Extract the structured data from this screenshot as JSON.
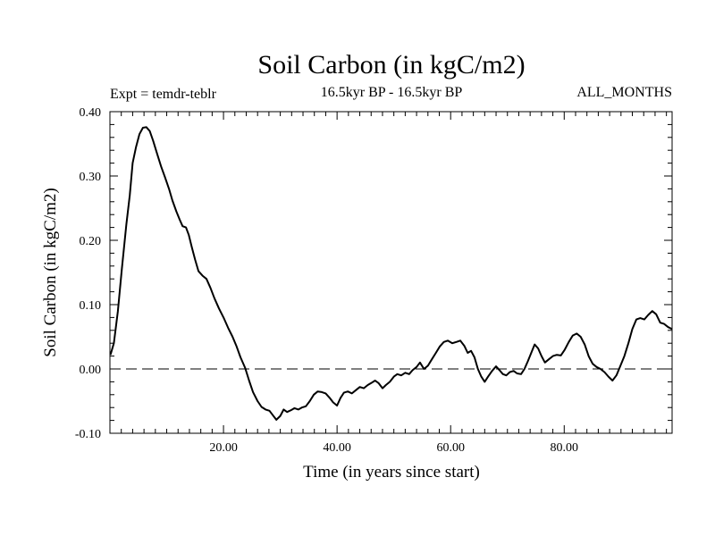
{
  "chart_data": {
    "type": "line",
    "title": "Soil Carbon (in kgC/m2)",
    "subtitle": "16.5kyr BP - 16.5kyr BP",
    "left_label": "Expt = temdr-teblr",
    "right_label": "ALL_MONTHS",
    "xlabel": "Time (in years since start)",
    "ylabel": "Soil Carbon (in kgC/m2)",
    "xlim": [
      0,
      99
    ],
    "ylim": [
      -0.1,
      0.4
    ],
    "x_ticks": [
      20,
      40,
      60,
      80
    ],
    "x_tick_labels": [
      "20.00",
      "40.00",
      "60.00",
      "80.00"
    ],
    "y_ticks": [
      -0.1,
      0,
      0.1,
      0.2,
      0.3,
      0.4
    ],
    "y_tick_labels": [
      "-0.10",
      "0.00",
      "0.10",
      "0.20",
      "0.30",
      "0.40"
    ],
    "zero_line": true,
    "series": [
      {
        "name": "Soil Carbon",
        "color": "#000000",
        "points": [
          [
            0.1,
            0.022
          ],
          [
            0.7,
            0.04
          ],
          [
            1.4,
            0.09
          ],
          [
            2.1,
            0.155
          ],
          [
            2.9,
            0.225
          ],
          [
            3.5,
            0.27
          ],
          [
            4.0,
            0.32
          ],
          [
            4.6,
            0.345
          ],
          [
            5.2,
            0.365
          ],
          [
            5.8,
            0.375
          ],
          [
            6.4,
            0.376
          ],
          [
            7.0,
            0.37
          ],
          [
            7.6,
            0.355
          ],
          [
            8.3,
            0.335
          ],
          [
            9.0,
            0.315
          ],
          [
            9.7,
            0.298
          ],
          [
            10.4,
            0.28
          ],
          [
            11.0,
            0.262
          ],
          [
            11.7,
            0.245
          ],
          [
            12.3,
            0.232
          ],
          [
            12.8,
            0.222
          ],
          [
            13.4,
            0.22
          ],
          [
            13.9,
            0.208
          ],
          [
            14.4,
            0.19
          ],
          [
            15.0,
            0.17
          ],
          [
            15.6,
            0.152
          ],
          [
            16.3,
            0.145
          ],
          [
            17.0,
            0.14
          ],
          [
            17.7,
            0.126
          ],
          [
            18.4,
            0.11
          ],
          [
            19.2,
            0.094
          ],
          [
            20.0,
            0.08
          ],
          [
            20.8,
            0.064
          ],
          [
            21.6,
            0.05
          ],
          [
            22.3,
            0.035
          ],
          [
            23.0,
            0.018
          ],
          [
            23.8,
            0.002
          ],
          [
            24.5,
            -0.018
          ],
          [
            25.2,
            -0.036
          ],
          [
            26.0,
            -0.05
          ],
          [
            26.7,
            -0.059
          ],
          [
            27.4,
            -0.063
          ],
          [
            28.1,
            -0.065
          ],
          [
            28.7,
            -0.072
          ],
          [
            29.3,
            -0.079
          ],
          [
            30.0,
            -0.073
          ],
          [
            30.6,
            -0.063
          ],
          [
            31.2,
            -0.067
          ],
          [
            31.9,
            -0.064
          ],
          [
            32.5,
            -0.061
          ],
          [
            33.2,
            -0.063
          ],
          [
            33.8,
            -0.06
          ],
          [
            34.5,
            -0.058
          ],
          [
            35.2,
            -0.05
          ],
          [
            35.9,
            -0.04
          ],
          [
            36.6,
            -0.035
          ],
          [
            37.3,
            -0.036
          ],
          [
            38.0,
            -0.038
          ],
          [
            38.7,
            -0.045
          ],
          [
            39.3,
            -0.052
          ],
          [
            40.0,
            -0.057
          ],
          [
            40.6,
            -0.045
          ],
          [
            41.2,
            -0.037
          ],
          [
            41.9,
            -0.035
          ],
          [
            42.6,
            -0.038
          ],
          [
            43.3,
            -0.033
          ],
          [
            44.0,
            -0.028
          ],
          [
            44.7,
            -0.03
          ],
          [
            45.4,
            -0.025
          ],
          [
            46.0,
            -0.022
          ],
          [
            46.7,
            -0.018
          ],
          [
            47.3,
            -0.022
          ],
          [
            48.0,
            -0.03
          ],
          [
            48.6,
            -0.025
          ],
          [
            49.3,
            -0.02
          ],
          [
            50.0,
            -0.012
          ],
          [
            50.6,
            -0.008
          ],
          [
            51.3,
            -0.01
          ],
          [
            52.0,
            -0.006
          ],
          [
            52.7,
            -0.008
          ],
          [
            53.3,
            -0.002
          ],
          [
            54.0,
            0.003
          ],
          [
            54.6,
            0.01
          ],
          [
            55.3,
            0.0
          ],
          [
            56.0,
            0.005
          ],
          [
            56.7,
            0.015
          ],
          [
            57.4,
            0.025
          ],
          [
            58.1,
            0.035
          ],
          [
            58.8,
            0.042
          ],
          [
            59.5,
            0.044
          ],
          [
            60.3,
            0.04
          ],
          [
            61.0,
            0.042
          ],
          [
            61.7,
            0.044
          ],
          [
            62.4,
            0.036
          ],
          [
            63.0,
            0.025
          ],
          [
            63.6,
            0.028
          ],
          [
            64.2,
            0.018
          ],
          [
            64.8,
            0.0
          ],
          [
            65.4,
            -0.012
          ],
          [
            66.0,
            -0.02
          ],
          [
            66.6,
            -0.012
          ],
          [
            67.3,
            -0.003
          ],
          [
            68.0,
            0.004
          ],
          [
            68.6,
            -0.002
          ],
          [
            69.2,
            -0.008
          ],
          [
            69.8,
            -0.01
          ],
          [
            70.4,
            -0.005
          ],
          [
            71.1,
            -0.003
          ],
          [
            71.7,
            -0.007
          ],
          [
            72.4,
            -0.008
          ],
          [
            73.0,
            0.0
          ],
          [
            73.6,
            0.012
          ],
          [
            74.2,
            0.025
          ],
          [
            74.8,
            0.038
          ],
          [
            75.4,
            0.032
          ],
          [
            76.0,
            0.02
          ],
          [
            76.6,
            0.01
          ],
          [
            77.3,
            0.015
          ],
          [
            78.0,
            0.02
          ],
          [
            78.7,
            0.022
          ],
          [
            79.4,
            0.021
          ],
          [
            80.1,
            0.03
          ],
          [
            80.8,
            0.042
          ],
          [
            81.5,
            0.052
          ],
          [
            82.2,
            0.055
          ],
          [
            82.9,
            0.05
          ],
          [
            83.6,
            0.038
          ],
          [
            84.3,
            0.02
          ],
          [
            85.0,
            0.008
          ],
          [
            85.7,
            0.003
          ],
          [
            86.4,
            0.0
          ],
          [
            87.1,
            -0.005
          ],
          [
            87.8,
            -0.012
          ],
          [
            88.5,
            -0.018
          ],
          [
            89.2,
            -0.01
          ],
          [
            89.9,
            0.005
          ],
          [
            90.6,
            0.02
          ],
          [
            91.3,
            0.04
          ],
          [
            92.0,
            0.062
          ],
          [
            92.7,
            0.077
          ],
          [
            93.4,
            0.079
          ],
          [
            94.1,
            0.077
          ],
          [
            94.8,
            0.084
          ],
          [
            95.5,
            0.09
          ],
          [
            96.2,
            0.085
          ],
          [
            96.9,
            0.072
          ],
          [
            97.6,
            0.07
          ],
          [
            98.3,
            0.065
          ],
          [
            99.0,
            0.062
          ]
        ]
      }
    ]
  }
}
